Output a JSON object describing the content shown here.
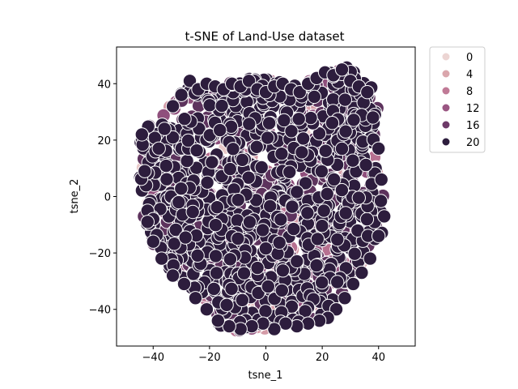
{
  "chart_data": {
    "type": "scatter",
    "title": "t-SNE of Land-Use dataset",
    "xlabel": "tsne_1",
    "ylabel": "tsne_2",
    "xlim": [
      -53,
      53
    ],
    "ylim": [
      -53,
      53
    ],
    "xticks": [
      -40,
      -20,
      0,
      20,
      40
    ],
    "yticks": [
      -40,
      -20,
      0,
      20,
      40
    ],
    "grid": false,
    "legend": {
      "placement": "outside-top-right",
      "entries": [
        {
          "label": "0",
          "color": "#ecd5d3"
        },
        {
          "label": "4",
          "color": "#daa6ac"
        },
        {
          "label": "8",
          "color": "#c07a96"
        },
        {
          "label": "12",
          "color": "#9a5682"
        },
        {
          "label": "16",
          "color": "#6d3a68"
        },
        {
          "label": "20",
          "color": "#2d1d3d"
        }
      ]
    },
    "hue_range": [
      0,
      20
    ],
    "point_shape": "circle",
    "point_edge_color": "#ffffff",
    "cloud_description_note": "",
    "boundary": [
      [
        -44,
        22
      ],
      [
        -40,
        27
      ],
      [
        -35,
        31
      ],
      [
        -31,
        36
      ],
      [
        -26,
        40
      ],
      [
        -20,
        41
      ],
      [
        -12,
        41
      ],
      [
        -4,
        42
      ],
      [
        4,
        41
      ],
      [
        12,
        40
      ],
      [
        18,
        42
      ],
      [
        24,
        45
      ],
      [
        29,
        46
      ],
      [
        34,
        43
      ],
      [
        38,
        38
      ],
      [
        40,
        32
      ],
      [
        39,
        25
      ],
      [
        38,
        17
      ],
      [
        40,
        8
      ],
      [
        42,
        0
      ],
      [
        43,
        -6
      ],
      [
        42,
        -12
      ],
      [
        38,
        -18
      ],
      [
        35,
        -24
      ],
      [
        31,
        -30
      ],
      [
        27,
        -36
      ],
      [
        22,
        -42
      ],
      [
        14,
        -44
      ],
      [
        6,
        -46
      ],
      [
        -2,
        -47
      ],
      [
        -10,
        -48
      ],
      [
        -18,
        -46
      ],
      [
        -22,
        -40
      ],
      [
        -25,
        -34
      ],
      [
        -30,
        -30
      ],
      [
        -36,
        -24
      ],
      [
        -40,
        -18
      ],
      [
        -43,
        -10
      ],
      [
        -44,
        -2
      ],
      [
        -45,
        8
      ],
      [
        -45,
        16
      ]
    ],
    "series": [
      {
        "x": [
          -44,
          -43,
          -42,
          -40,
          -38,
          -36,
          -33,
          -30,
          -27,
          -24,
          -21,
          -18,
          -15,
          -12,
          -9,
          -6,
          -3,
          0,
          3,
          6,
          9,
          12,
          15,
          18,
          21,
          24,
          27,
          30,
          33,
          36,
          38,
          40,
          41,
          42,
          40,
          37,
          34,
          31,
          28,
          25,
          22,
          19,
          15,
          11,
          7,
          3,
          -1,
          -5,
          -9,
          -13,
          -17,
          -21,
          -25,
          -29,
          -33,
          -37,
          -40,
          -42
        ],
        "y": [
          22,
          9,
          -5,
          -8,
          17,
          24,
          32,
          36,
          41,
          38,
          40,
          39,
          38,
          40,
          39,
          41,
          38,
          37,
          39,
          40,
          38,
          37,
          40,
          42,
          44,
          43,
          45,
          41,
          39,
          37,
          28,
          17,
          6,
          -7,
          -14,
          -22,
          -27,
          -31,
          -36,
          -40,
          -43,
          -44,
          -45,
          -46,
          -45,
          -47,
          -45,
          -46,
          -47,
          -46,
          -44,
          -40,
          -36,
          -31,
          -28,
          -22,
          -16,
          -9
        ],
        "hue": [
          20,
          20,
          20,
          20,
          20,
          20,
          20,
          20,
          20,
          20,
          20,
          20,
          20,
          20,
          20,
          20,
          20,
          20,
          20,
          20,
          20,
          20,
          20,
          20,
          20,
          20,
          20,
          20,
          20,
          20,
          20,
          20,
          20,
          20,
          20,
          20,
          20,
          20,
          20,
          20,
          20,
          20,
          20,
          20,
          20,
          20,
          20,
          20,
          20,
          20,
          20,
          20,
          20,
          20,
          20,
          20,
          20,
          20
        ]
      }
    ]
  }
}
